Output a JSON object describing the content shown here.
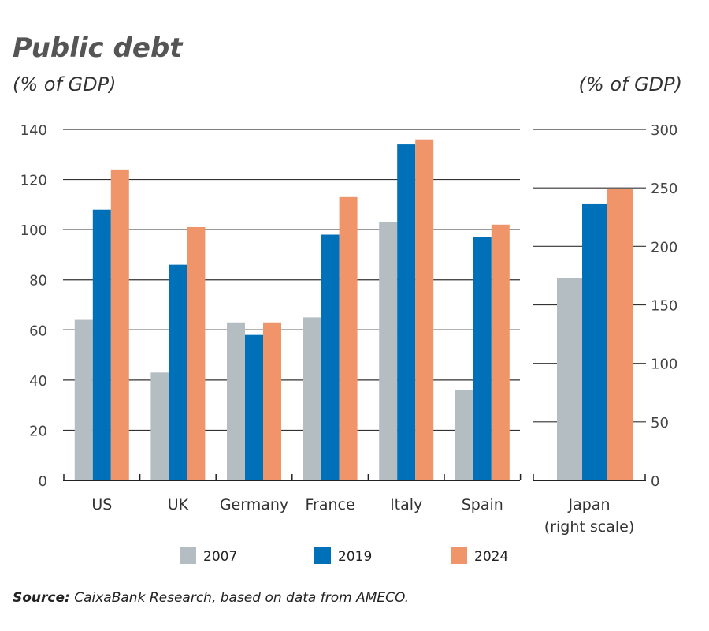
{
  "chart_data": {
    "type": "bar",
    "title": "Public debt",
    "ylabel_left": "(% of GDP)",
    "ylabel_right": "(% of GDP)",
    "categories": [
      "US",
      "UK",
      "Germany",
      "France",
      "Italy",
      "Spain"
    ],
    "series": [
      {
        "name": "2007",
        "color": "#b4bdc1",
        "values": [
          64,
          43,
          63,
          65,
          103,
          36
        ]
      },
      {
        "name": "2019",
        "color": "#0070b8",
        "values": [
          108,
          86,
          58,
          98,
          134,
          97
        ]
      },
      {
        "name": "2024",
        "color": "#f0956a",
        "values": [
          124,
          101,
          63,
          113,
          136,
          102
        ]
      }
    ],
    "ylim_left": [
      0,
      140
    ],
    "yticks_left": [
      0,
      20,
      40,
      60,
      80,
      100,
      120,
      140
    ],
    "right_panel": {
      "category": "Japan",
      "category_note": "(right scale)",
      "values": [
        173,
        236,
        249
      ],
      "ylim": [
        0,
        300
      ],
      "yticks": [
        0,
        50,
        100,
        150,
        200,
        250,
        300
      ]
    },
    "legend": [
      "2007",
      "2019",
      "2024"
    ],
    "legend_position": "bottom",
    "grid": true
  },
  "source": {
    "label": "Source:",
    "text": " CaixaBank Research, based on data from AMECO."
  }
}
